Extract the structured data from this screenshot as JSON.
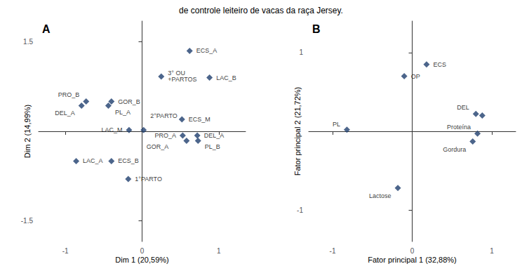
{
  "chart_data": [
    {
      "type": "scatter",
      "title": "de controle leiteiro de vacas da raça Jersey.",
      "annotations": [
        "A"
      ],
      "xlabel": "Dim 1 (20,59%)",
      "ylabel": "Dim 2 (14,99%)",
      "xlim": [
        -1.35,
        1.35
      ],
      "ylim": [
        -1.85,
        1.85
      ],
      "xticks": [
        -1,
        0,
        1
      ],
      "yticks": [
        -1.5,
        1.5
      ],
      "x": [
        0.62,
        0.25,
        0.88,
        -0.73,
        -0.4,
        -0.44,
        -0.79,
        0.52,
        -0.17,
        0.02,
        0.53,
        0.72,
        0.58,
        0.73,
        -0.86,
        -0.4,
        -0.18
      ],
      "y": [
        1.35,
        0.92,
        0.9,
        0.5,
        0.5,
        0.43,
        0.43,
        0.2,
        0.02,
        0.02,
        -0.07,
        -0.07,
        -0.16,
        -0.16,
        -0.5,
        -0.5,
        -0.8
      ],
      "labels": [
        "ECS_A",
        "3° OU\n+PARTOS",
        "LAC_B",
        "PRO_B",
        "GOR_B",
        "PL_A",
        "DEL_A",
        "ECS_M",
        "LAC_M",
        "2°PARTO",
        "PRO_A",
        "DEL_A",
        "GOR_A",
        "PL_B",
        "LAC_A",
        "ECS_B",
        "1°PARTO"
      ],
      "color": "#1F3F6E",
      "marker": "diamond",
      "grid": false
    },
    {
      "type": "scatter",
      "annotations": [
        "B"
      ],
      "xlabel": "Fator principal 1 (32,88%)",
      "ylabel": "Fator principal 2 (21,72%)",
      "xlim": [
        -1.3,
        1.3
      ],
      "ylim": [
        -1.4,
        1.4
      ],
      "xticks": [
        -1,
        0,
        1
      ],
      "yticks": [
        -1,
        1
      ],
      "x": [
        0.18,
        -0.1,
        -0.82,
        0.8,
        0.88,
        0.82,
        0.76,
        -0.18
      ],
      "y": [
        0.85,
        0.7,
        0.02,
        0.22,
        0.2,
        -0.03,
        -0.13,
        -0.72
      ],
      "labels": [
        "ECS",
        "OP",
        "PL",
        "DEL",
        null,
        "Proteína",
        "Gordura",
        "Lactose"
      ],
      "color": "#1F3F6E",
      "marker": "diamond",
      "grid": false
    }
  ]
}
